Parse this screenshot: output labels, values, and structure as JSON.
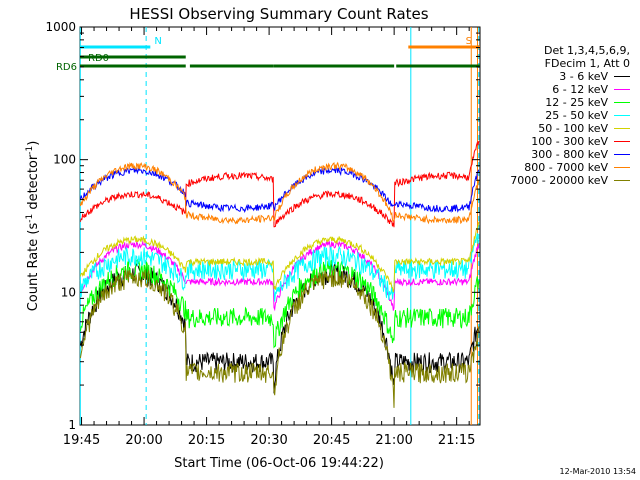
{
  "chart_data": {
    "type": "line",
    "title": "HESSI Observing Summary Count Rates",
    "xlabel": "Start Time (06-Oct-06 19:44:22)",
    "ylabel_main": "Count Rate (s",
    "ylabel_sup1": "-1",
    "ylabel_mid": " detector",
    "ylabel_sup2": "-1",
    "ylabel_end": ")",
    "y_scale": "log",
    "ylim": [
      1,
      1000
    ],
    "y_ticks": [
      "1",
      "10",
      "100",
      "1000"
    ],
    "x_ticks": [
      "19:45",
      "20:00",
      "20:15",
      "20:30",
      "20:45",
      "21:00",
      "21:15"
    ],
    "x_range_minutes": [
      -0.37,
      95.6
    ],
    "legend_header": [
      "Det 1,3,4,5,6,9,",
      "FDecim 1, Att 0"
    ],
    "series": [
      {
        "name": "3 - 6 keV",
        "color": "#000000",
        "peak": 14,
        "base": 3
      },
      {
        "name": "6 - 12 keV",
        "color": "#ff00ff",
        "peak": 23,
        "base": 12
      },
      {
        "name": "12 - 25 keV",
        "color": "#00ff00",
        "peak": 15,
        "base": 6.5
      },
      {
        "name": "25 - 50 keV",
        "color": "#00ffff",
        "peak": 19,
        "base": 15
      },
      {
        "name": "50 - 100 keV",
        "color": "#d2d200",
        "peak": 25,
        "base": 17
      },
      {
        "name": "100 - 300 keV",
        "color": "#ff0000",
        "peak": 55,
        "base": 66
      },
      {
        "name": "300 - 800 keV",
        "color": "#0000ff",
        "peak": 83,
        "base": 43
      },
      {
        "name": "800 - 7000 keV",
        "color": "#ff8000",
        "peak": 90,
        "base": 35
      },
      {
        "name": "7000 - 20000 keV",
        "color": "#808000",
        "peak": 13,
        "base": 2.5
      }
    ],
    "flags": {
      "N": {
        "label": "N",
        "color": "#00e5ff",
        "segments": [
          [
            -0.37,
            16.5
          ]
        ]
      },
      "S": {
        "label": "S",
        "color": "#ff8000",
        "segments": [
          [
            78.4,
            95.6
          ]
        ]
      },
      "RD0": {
        "label": "RD0",
        "color": "#006400",
        "segments": [
          [
            -0.37,
            25.0
          ]
        ]
      },
      "RD6": {
        "label": "RD6",
        "color": "#006400",
        "segments": [
          [
            -0.37,
            25.0
          ],
          [
            26.0,
            46.0
          ],
          [
            46.0,
            75.0
          ],
          [
            75.5,
            95.6
          ]
        ]
      }
    },
    "vlines": [
      {
        "t": -0.3,
        "color": "#00e5ff",
        "style": "solid"
      },
      {
        "t": 15.5,
        "color": "#00e5ff",
        "style": "dashed"
      },
      {
        "t": 79.0,
        "color": "#00e5ff",
        "style": "solid"
      },
      {
        "t": 93.5,
        "color": "#ff8000",
        "style": "solid"
      },
      {
        "t": 95.0,
        "color": "#ff8000",
        "style": "solid"
      },
      {
        "t": 95.3,
        "color": "#00e5ff",
        "style": "dashed"
      }
    ],
    "grid": false
  },
  "timestamp": "12-Mar-2010 13:54"
}
